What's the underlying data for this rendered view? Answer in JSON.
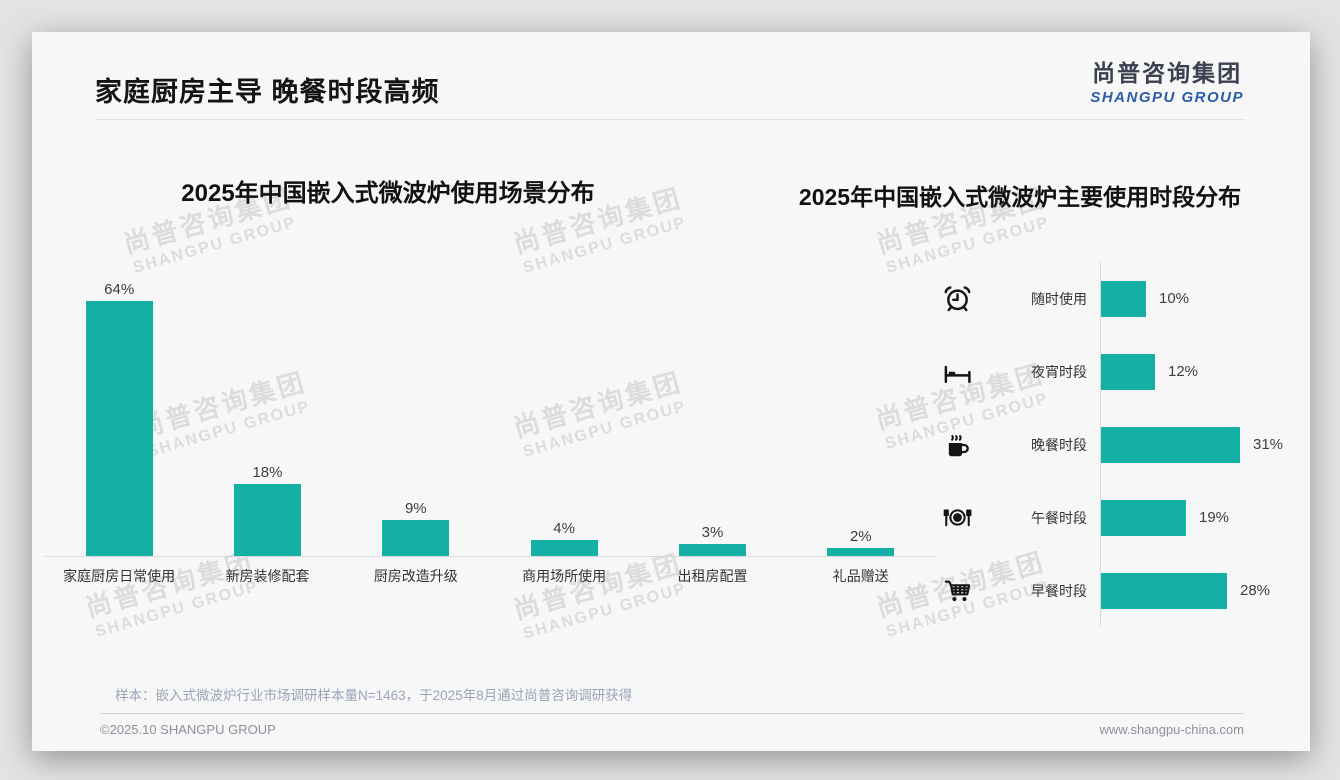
{
  "page": {
    "slide_title": "家庭厨房主导 晚餐时段高频",
    "logo": {
      "cn": "尚普咨询集团",
      "en": "SHANGPU GROUP"
    },
    "watermark": {
      "cn": "尚普咨询集团",
      "en": "SHANGPU GROUP"
    },
    "footnote": "样本：嵌入式微波炉行业市场调研样本量N=1463，于2025年8月通过尚普咨询调研获得",
    "copyright": "©2025.10 SHANGPU GROUP",
    "website": "www.shangpu-china.com"
  },
  "colors": {
    "bar": "#14b0a5",
    "logo_blue": "#2b5ca8",
    "title_text": "#141414",
    "note_text": "#9aa4b7"
  },
  "chart_data": [
    {
      "type": "bar",
      "orientation": "vertical",
      "title": "2025年中国嵌入式微波炉使用场景分布",
      "categories": [
        "家庭厨房日常使用",
        "新房装修配套",
        "厨房改造升级",
        "商用场所使用",
        "出租房配置",
        "礼品赠送"
      ],
      "values": [
        64,
        18,
        9,
        4,
        3,
        2
      ],
      "unit": "%",
      "ylim": [
        0,
        70
      ],
      "grid": false,
      "legend": false,
      "bar_color": "#14b0a5"
    },
    {
      "type": "bar",
      "orientation": "horizontal",
      "title": "2025年中国嵌入式微波炉主要使用时段分布",
      "categories": [
        "随时使用",
        "夜宵时段",
        "晚餐时段",
        "午餐时段",
        "早餐时段"
      ],
      "values": [
        10,
        12,
        31,
        19,
        28
      ],
      "icons": [
        "alarm-clock-icon",
        "bed-icon",
        "hot-drink-icon",
        "plate-cutlery-icon",
        "shopping-cart-icon"
      ],
      "unit": "%",
      "xlim": [
        0,
        35
      ],
      "grid": false,
      "legend": false,
      "bar_color": "#14b0a5"
    }
  ]
}
